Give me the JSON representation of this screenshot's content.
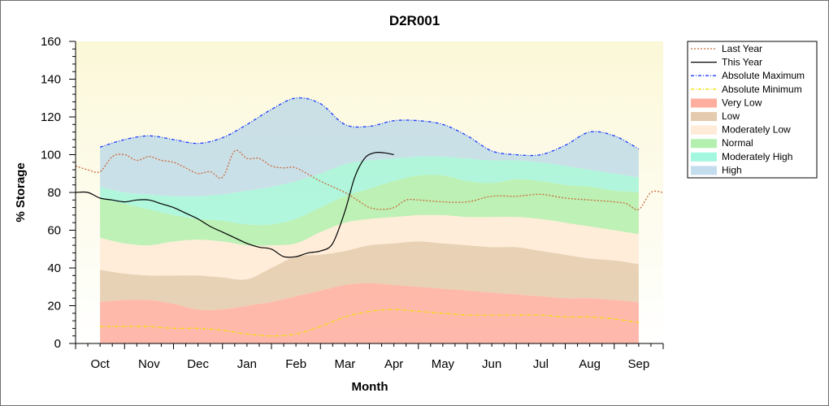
{
  "chart_data": {
    "type": "area",
    "title": "D2R001",
    "xlabel": "Month",
    "ylabel": "% Storage",
    "ylim": [
      0,
      160
    ],
    "yticks": [
      0,
      20,
      40,
      60,
      80,
      100,
      120,
      140,
      160
    ],
    "x_month_labels": [
      "Oct",
      "Nov",
      "Dec",
      "Jan",
      "Feb",
      "Mar",
      "Apr",
      "May",
      "Jun",
      "Jul",
      "Aug",
      "Sep"
    ],
    "xlim_month_index": [
      -0.5,
      11.5
    ],
    "grid": false,
    "legend_position": "right",
    "bands": [
      {
        "name": "Very Low",
        "color": "#ff8a75",
        "x": [
          0,
          0.5,
          1,
          1.5,
          2,
          2.5,
          3,
          3.5,
          4,
          4.5,
          5,
          5.5,
          6,
          6.5,
          7,
          7.5,
          8,
          8.5,
          9,
          9.5,
          10,
          10.5,
          11
        ],
        "lower": [
          0,
          0,
          0,
          0,
          0,
          0,
          0,
          0,
          0,
          0,
          0,
          0,
          0,
          0,
          0,
          0,
          0,
          0,
          0,
          0,
          0,
          0,
          0
        ],
        "upper": [
          22,
          23,
          23,
          21,
          18,
          18,
          20,
          22,
          25,
          28,
          31,
          32,
          31,
          30,
          29,
          28,
          27,
          26,
          25,
          24,
          24,
          23,
          22
        ]
      },
      {
        "name": "Low",
        "color": "#d9b48b",
        "x": [
          0,
          0.5,
          1,
          1.5,
          2,
          2.5,
          3,
          3.5,
          4,
          4.5,
          5,
          5.5,
          6,
          6.5,
          7,
          7.5,
          8,
          8.5,
          9,
          9.5,
          10,
          10.5,
          11
        ],
        "upper": [
          39,
          37,
          36,
          36,
          36,
          35,
          34,
          40,
          46,
          47,
          49,
          52,
          53,
          54,
          53,
          52,
          51,
          51,
          49,
          47,
          45,
          44,
          42
        ]
      },
      {
        "name": "Moderately Low",
        "color": "#ffe2c8",
        "x": [
          0,
          0.5,
          1,
          1.5,
          2,
          2.5,
          3,
          3.5,
          4,
          4.5,
          5,
          5.5,
          6,
          6.5,
          7,
          7.5,
          8,
          8.5,
          9,
          9.5,
          10,
          10.5,
          11
        ],
        "upper": [
          56,
          53,
          52,
          54,
          55,
          54,
          52,
          52,
          53,
          59,
          64,
          66,
          67,
          68,
          68,
          67,
          67,
          67,
          66,
          64,
          62,
          60,
          58
        ]
      },
      {
        "name": "Normal",
        "color": "#93e98f",
        "x": [
          0,
          0.5,
          1,
          1.5,
          2,
          2.5,
          3,
          3.5,
          4,
          4.5,
          5,
          5.5,
          6,
          6.5,
          7,
          7.5,
          8,
          8.5,
          9,
          9.5,
          10,
          10.5,
          11
        ],
        "upper": [
          77,
          74,
          71,
          68,
          66,
          65,
          63,
          63,
          66,
          72,
          78,
          82,
          86,
          89,
          89,
          86,
          85,
          87,
          86,
          84,
          83,
          81,
          80
        ]
      },
      {
        "name": "Moderately High",
        "color": "#7ef4d2",
        "x": [
          0,
          0.5,
          1,
          1.5,
          2,
          2.5,
          3,
          3.5,
          4,
          4.5,
          5,
          5.5,
          6,
          6.5,
          7,
          7.5,
          8,
          8.5,
          9,
          9.5,
          10,
          10.5,
          11
        ],
        "upper": [
          83,
          80,
          79,
          78,
          78,
          79,
          81,
          83,
          86,
          90,
          95,
          97,
          98,
          99,
          99,
          98,
          97,
          97,
          96,
          94,
          92,
          90,
          88
        ]
      },
      {
        "name": "High",
        "color": "#a9cfe8",
        "x": [
          0,
          0.5,
          1,
          1.5,
          2,
          2.5,
          3,
          3.5,
          4,
          4.5,
          5,
          5.5,
          6,
          6.5,
          7,
          7.5,
          8,
          8.5,
          9,
          9.5,
          10,
          10.5,
          11
        ],
        "upper": [
          104,
          108,
          110,
          108,
          106,
          109,
          116,
          124,
          130,
          127,
          116,
          115,
          118,
          118,
          116,
          110,
          102,
          100,
          100,
          105,
          112,
          110,
          103
        ]
      }
    ],
    "series": [
      {
        "name": "Last Year",
        "style": "dotted",
        "color": "#c96a3a",
        "x": [
          -0.5,
          -0.25,
          0,
          0.25,
          0.5,
          0.75,
          1,
          1.25,
          1.5,
          1.75,
          2,
          2.25,
          2.5,
          2.75,
          3,
          3.25,
          3.5,
          3.75,
          4,
          4.5,
          5,
          5.25,
          5.5,
          5.75,
          6,
          6.25,
          6.5,
          7,
          7.5,
          8,
          8.5,
          9,
          9.5,
          10,
          10.5,
          10.75,
          11,
          11.25,
          11.5
        ],
        "y": [
          94,
          92,
          91,
          99,
          100,
          97,
          99,
          97,
          96,
          93,
          90,
          91,
          88,
          102,
          98,
          98,
          94,
          93,
          93,
          86,
          80,
          76,
          72,
          71,
          72,
          76,
          76,
          75,
          75,
          78,
          78,
          79,
          77,
          76,
          75,
          74,
          71,
          80,
          80
        ]
      },
      {
        "name": "This Year",
        "style": "solid",
        "color": "#000000",
        "x": [
          -0.5,
          -0.25,
          0,
          0.25,
          0.5,
          0.75,
          1,
          1.25,
          1.5,
          1.75,
          2,
          2.25,
          2.5,
          2.75,
          3,
          3.25,
          3.5,
          3.75,
          4,
          4.25,
          4.5,
          4.75,
          5,
          5.2,
          5.4,
          5.6,
          5.8,
          6
        ],
        "y": [
          80,
          80,
          77,
          76,
          75,
          76,
          76,
          74,
          72,
          69,
          66,
          62,
          59,
          56,
          53,
          51,
          50,
          46,
          46,
          48,
          49,
          53,
          70,
          88,
          98,
          101,
          101,
          100
        ]
      },
      {
        "name": "Absolute Maximum",
        "style": "dashdot",
        "color": "#1a3cff",
        "x": [
          0,
          0.5,
          1,
          1.5,
          2,
          2.5,
          3,
          3.5,
          4,
          4.5,
          5,
          5.5,
          6,
          6.5,
          7,
          7.5,
          8,
          8.5,
          9,
          9.5,
          10,
          10.5,
          11
        ],
        "y": [
          104,
          108,
          110,
          108,
          106,
          109,
          116,
          124,
          130,
          127,
          116,
          115,
          118,
          118,
          116,
          110,
          102,
          100,
          100,
          105,
          112,
          110,
          103
        ]
      },
      {
        "name": "Absolute Minimum",
        "style": "dashdot",
        "color": "#f0e000",
        "x": [
          0,
          0.5,
          1,
          1.5,
          2,
          2.5,
          3,
          3.5,
          4,
          4.5,
          5,
          5.5,
          6,
          6.5,
          7,
          7.5,
          8,
          8.5,
          9,
          9.5,
          10,
          10.5,
          11
        ],
        "y": [
          9,
          9,
          9,
          8,
          8,
          7,
          5,
          4,
          5,
          9,
          14,
          17,
          18,
          17,
          16,
          15,
          15,
          15,
          15,
          14,
          14,
          13,
          11
        ]
      }
    ],
    "legend": [
      "Last Year",
      "This Year",
      "Absolute Maximum",
      "Absolute Minimum",
      "Very Low",
      "Low",
      "Moderately Low",
      "Normal",
      "Moderately High",
      "High"
    ],
    "colors": {
      "plot_bg_top": "#fbf8d8",
      "plot_bg_bottom": "#ffffff"
    }
  }
}
